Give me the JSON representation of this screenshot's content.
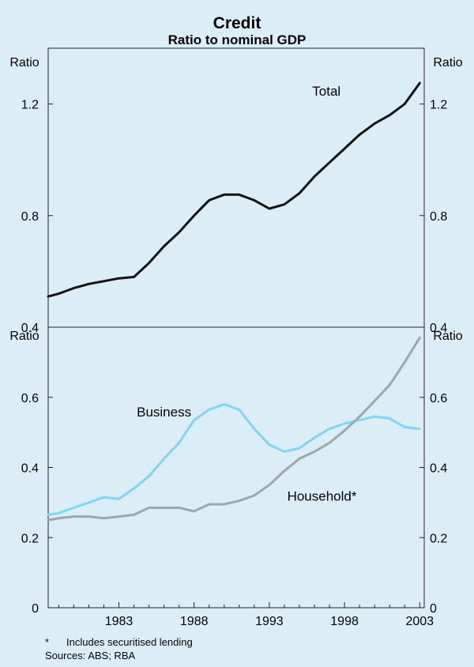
{
  "title": "Credit",
  "subtitle": "Ratio to nominal GDP",
  "footnote_marker": "*",
  "footnote": "Includes securitised lending",
  "sources": "Sources: ABS; RBA",
  "chart_data": [
    {
      "type": "line",
      "panel": "top",
      "ylabel_left": "Ratio",
      "ylabel_right": "Ratio",
      "ylim": [
        0.4,
        1.4
      ],
      "yticks": [
        {
          "value": 0.4,
          "label": "0.4"
        },
        {
          "value": 0.8,
          "label": "0.8"
        },
        {
          "value": 1.2,
          "label": "1.2"
        }
      ],
      "series": [
        {
          "name": "Total",
          "color": "#111111",
          "label_position": {
            "x": 1996.8,
            "y": 1.23
          },
          "x": [
            1978.3,
            1979,
            1980,
            1981,
            1982,
            1983,
            1984,
            1985,
            1986,
            1987,
            1988,
            1989,
            1990,
            1991,
            1992,
            1993,
            1994,
            1995,
            1996,
            1997,
            1998,
            1999,
            2000,
            2001,
            2002,
            2003
          ],
          "y": [
            0.51,
            0.52,
            0.54,
            0.555,
            0.565,
            0.575,
            0.58,
            0.63,
            0.69,
            0.74,
            0.8,
            0.855,
            0.875,
            0.875,
            0.855,
            0.825,
            0.84,
            0.88,
            0.94,
            0.99,
            1.04,
            1.09,
            1.13,
            1.16,
            1.2,
            1.275
          ]
        }
      ]
    },
    {
      "type": "line",
      "panel": "bottom",
      "ylabel_left": "Ratio",
      "ylabel_right": "Ratio",
      "ylim": [
        0,
        0.8
      ],
      "yticks": [
        {
          "value": 0,
          "label": "0"
        },
        {
          "value": 0.2,
          "label": "0.2"
        },
        {
          "value": 0.4,
          "label": "0.4"
        },
        {
          "value": 0.6,
          "label": "0.6"
        }
      ],
      "xlim": [
        1978.3,
        2003.3
      ],
      "xticks": [
        {
          "value": 1983,
          "label": "1983"
        },
        {
          "value": 1988,
          "label": "1988"
        },
        {
          "value": 1993,
          "label": "1993"
        },
        {
          "value": 1998,
          "label": "1998"
        },
        {
          "value": 2003,
          "label": "2003"
        }
      ],
      "series": [
        {
          "name": "Business",
          "color": "#7fd6f4",
          "label_position": {
            "x": 1986.0,
            "y": 0.545
          },
          "x": [
            1978.3,
            1979,
            1980,
            1981,
            1982,
            1983,
            1984,
            1985,
            1986,
            1987,
            1988,
            1989,
            1990,
            1991,
            1992,
            1993,
            1994,
            1995,
            1996,
            1997,
            1998,
            1999,
            2000,
            2001,
            2002,
            2003
          ],
          "y": [
            0.265,
            0.27,
            0.285,
            0.3,
            0.315,
            0.31,
            0.34,
            0.375,
            0.425,
            0.47,
            0.535,
            0.565,
            0.58,
            0.565,
            0.51,
            0.465,
            0.445,
            0.455,
            0.485,
            0.51,
            0.525,
            0.535,
            0.545,
            0.54,
            0.515,
            0.51
          ]
        },
        {
          "name": "Household*",
          "color": "#9ea7ae",
          "label_position": {
            "x": 1996.5,
            "y": 0.305
          },
          "x": [
            1978.3,
            1979,
            1980,
            1981,
            1982,
            1983,
            1984,
            1985,
            1986,
            1987,
            1988,
            1989,
            1990,
            1991,
            1992,
            1993,
            1994,
            1995,
            1996,
            1997,
            1998,
            1999,
            2000,
            2001,
            2002,
            2003
          ],
          "y": [
            0.25,
            0.255,
            0.26,
            0.26,
            0.255,
            0.26,
            0.265,
            0.285,
            0.285,
            0.285,
            0.275,
            0.295,
            0.295,
            0.305,
            0.32,
            0.35,
            0.39,
            0.425,
            0.445,
            0.47,
            0.505,
            0.545,
            0.59,
            0.635,
            0.7,
            0.77
          ]
        }
      ]
    }
  ]
}
